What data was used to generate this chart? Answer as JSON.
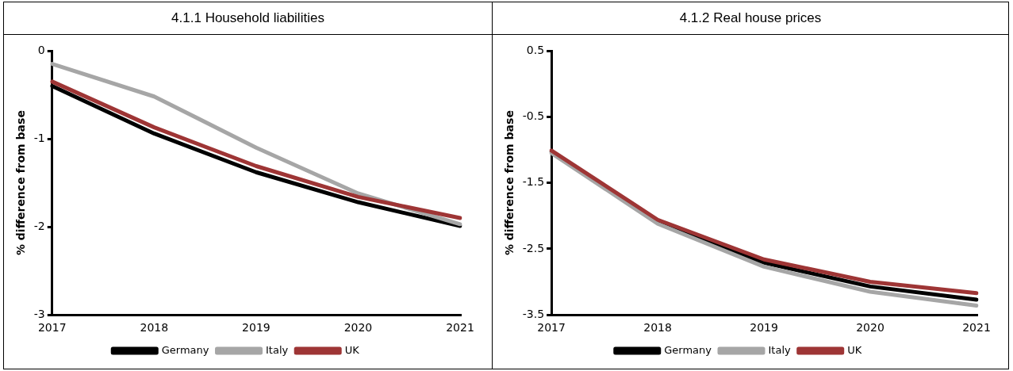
{
  "chart_data": [
    {
      "type": "line",
      "title": "4.1.1 Household liabilities",
      "ylabel": "% difference from base",
      "categories": [
        "2017",
        "2018",
        "2019",
        "2020",
        "2021"
      ],
      "series": [
        {
          "name": "Germany",
          "color": "#000000",
          "values": [
            -0.4,
            -0.94,
            -1.38,
            -1.72,
            -1.99
          ]
        },
        {
          "name": "Italy",
          "color": "#a6a6a6",
          "values": [
            -0.15,
            -0.52,
            -1.1,
            -1.62,
            -1.97
          ]
        },
        {
          "name": "UK",
          "color": "#9e3535",
          "values": [
            -0.35,
            -0.87,
            -1.31,
            -1.66,
            -1.9
          ]
        }
      ],
      "ylim": [
        -3,
        0
      ],
      "yticks": [
        -3,
        -2,
        -1,
        0
      ],
      "legend": "bottom",
      "marker": "none",
      "line_style": "solid"
    },
    {
      "type": "line",
      "title": "4.1.2 Real house prices",
      "ylabel": "% difference from base",
      "categories": [
        "2017",
        "2018",
        "2019",
        "2020",
        "2021"
      ],
      "series": [
        {
          "name": "Germany",
          "color": "#000000",
          "values": [
            -1.03,
            -2.1,
            -2.71,
            -3.07,
            -3.27
          ]
        },
        {
          "name": "Italy",
          "color": "#a6a6a6",
          "values": [
            -1.05,
            -2.12,
            -2.77,
            -3.15,
            -3.36
          ]
        },
        {
          "name": "UK",
          "color": "#9e3535",
          "values": [
            -1.01,
            -2.06,
            -2.66,
            -3.0,
            -3.17
          ]
        }
      ],
      "ylim": [
        -3.5,
        0.5
      ],
      "yticks": [
        -3.5,
        -2.5,
        -1.5,
        -0.5,
        0.5
      ],
      "legend": "bottom",
      "marker": "none",
      "line_style": "solid"
    }
  ]
}
